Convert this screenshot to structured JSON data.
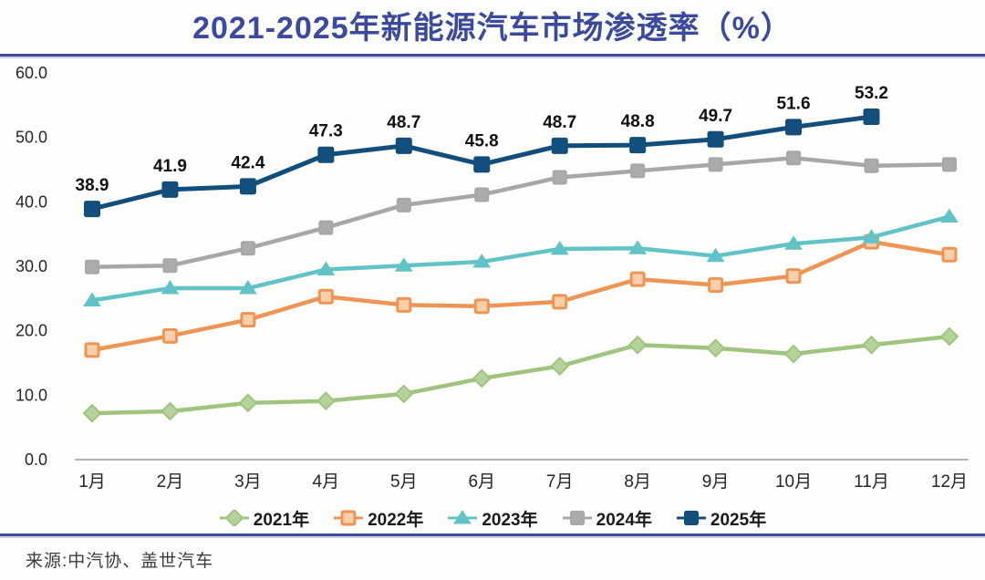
{
  "title": "2021-2025年新能源汽车市场渗透率（%）",
  "source": "来源:中汽协、盖世汽车",
  "colors": {
    "title_blue": "#3b4a9e",
    "rule_blue": "#3d4c9f",
    "axis_line": "#b3b3b3",
    "tick_text": "#262626",
    "data_label_text": "#111111",
    "data_label_chip": "#ffffff"
  },
  "chart_data": {
    "type": "line",
    "title": "2021-2025年新能源汽车市场渗透率（%）",
    "xlabel": "",
    "ylabel": "",
    "x": [
      "1月",
      "2月",
      "3月",
      "4月",
      "5月",
      "6月",
      "7月",
      "8月",
      "9月",
      "10月",
      "11月",
      "12月"
    ],
    "y_ticks": [
      "0.0",
      "10.0",
      "20.0",
      "30.0",
      "40.0",
      "50.0",
      "60.0"
    ],
    "ylim": [
      0,
      60
    ],
    "grid": false,
    "legend_position": "bottom",
    "series": [
      {
        "name": "2021年",
        "marker": "diamond",
        "color": "#9ec47e",
        "fill": "#b5d29c",
        "values": [
          7.2,
          7.5,
          8.8,
          9.1,
          10.2,
          12.6,
          14.5,
          17.8,
          17.3,
          16.4,
          17.8,
          19.1
        ]
      },
      {
        "name": "2022年",
        "marker": "square",
        "color": "#ee9556",
        "fill": "#f9d0a9",
        "values": [
          17.0,
          19.2,
          21.7,
          25.3,
          24.0,
          23.8,
          24.5,
          28.0,
          27.1,
          28.5,
          33.8,
          31.8
        ]
      },
      {
        "name": "2023年",
        "marker": "triangle",
        "color": "#62c3c6",
        "fill": "#62c3c6",
        "values": [
          24.7,
          26.6,
          26.6,
          29.5,
          30.1,
          30.7,
          32.7,
          32.8,
          31.6,
          33.5,
          34.5,
          37.7
        ]
      },
      {
        "name": "2024年",
        "marker": "square",
        "color": "#a7a7a7",
        "fill": "#ababab",
        "values": [
          29.9,
          30.1,
          32.8,
          36.0,
          39.5,
          41.1,
          43.8,
          44.8,
          45.8,
          46.8,
          45.6,
          45.8
        ]
      },
      {
        "name": "2025年",
        "marker": "square",
        "color": "#124e7b",
        "fill": "#134f7c",
        "show_labels": true,
        "values": [
          38.9,
          41.9,
          42.4,
          47.3,
          48.7,
          45.8,
          48.7,
          48.8,
          49.7,
          51.6,
          53.2
        ]
      }
    ]
  }
}
